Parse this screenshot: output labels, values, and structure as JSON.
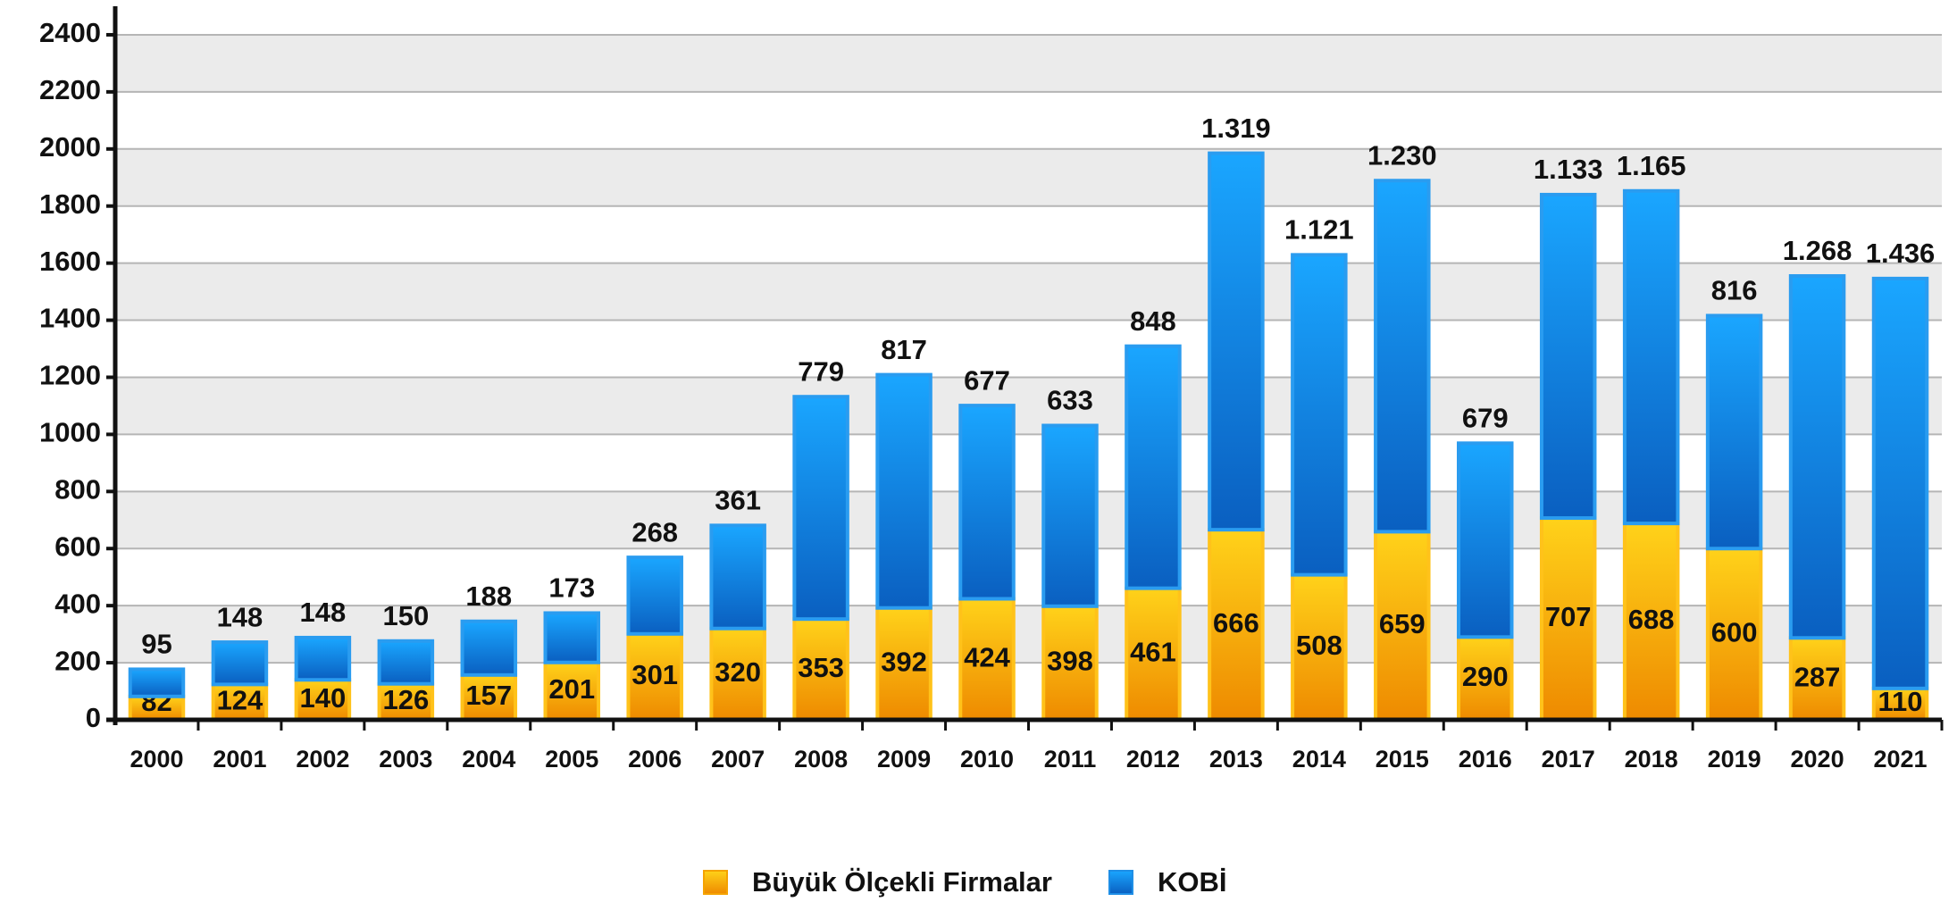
{
  "chart_data": {
    "type": "stacked_bar",
    "categories": [
      "2000",
      "2001",
      "2002",
      "2003",
      "2004",
      "2005",
      "2006",
      "2007",
      "2008",
      "2009",
      "2010",
      "2011",
      "2012",
      "2013",
      "2014",
      "2015",
      "2016",
      "2017",
      "2018",
      "2019",
      "2020",
      "2021"
    ],
    "series": [
      {
        "name": "Büyük Ölçekli Firmalar",
        "color": "#f5a300",
        "values": [
          82,
          124,
          140,
          126,
          157,
          201,
          301,
          320,
          353,
          392,
          424,
          398,
          461,
          666,
          508,
          659,
          290,
          707,
          688,
          600,
          287,
          110
        ]
      },
      {
        "name": "KOBİ",
        "color": "#1e8ee6",
        "values": [
          95,
          148,
          148,
          150,
          188,
          173,
          268,
          361,
          779,
          817,
          677,
          633,
          848,
          1319,
          1121,
          1230,
          679,
          1133,
          1165,
          816,
          1268,
          1436
        ],
        "value_labels": [
          "95",
          "148",
          "148",
          "150",
          "188",
          "173",
          "268",
          "361",
          "779",
          "817",
          "677",
          "633",
          "848",
          "1.319",
          "1.121",
          "1.230",
          "679",
          "1.133",
          "1.165",
          "816",
          "1.268",
          "1.436"
        ]
      }
    ],
    "ylim": [
      0,
      2500
    ],
    "yticks": [
      0,
      200,
      400,
      600,
      800,
      1000,
      1200,
      1400,
      1600,
      1800,
      2000,
      2200,
      2400
    ],
    "grid": true,
    "legend": "bottom"
  }
}
